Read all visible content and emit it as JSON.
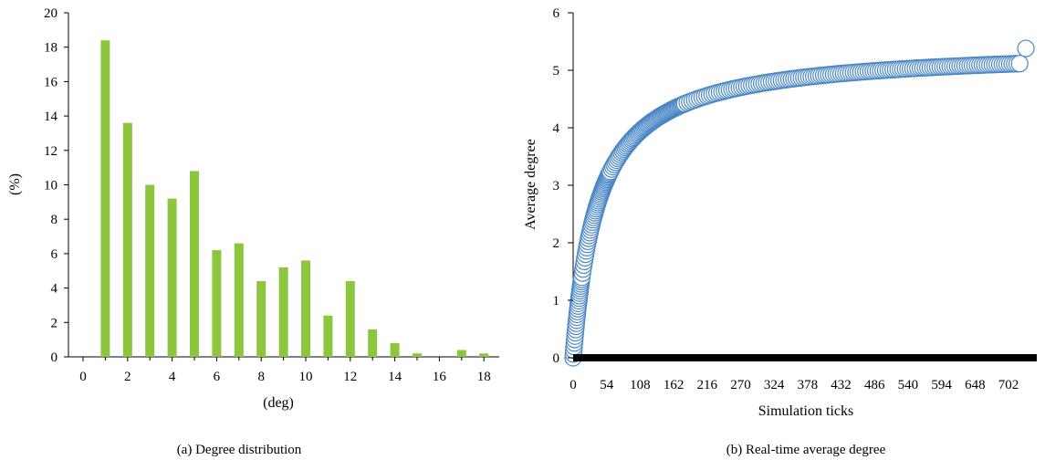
{
  "figure": {
    "caption_a": "(a)  Degree distribution",
    "caption_b": "(b)  Real-time average degree"
  },
  "chart_data": [
    {
      "type": "bar",
      "title": "",
      "xlabel": "(deg)",
      "ylabel": "(%)",
      "xlim": [
        -1,
        18.5
      ],
      "ylim": [
        0,
        20
      ],
      "xticks": [
        0,
        2,
        4,
        6,
        8,
        10,
        12,
        14,
        16,
        18
      ],
      "yticks": [
        0,
        2,
        4,
        6,
        8,
        10,
        12,
        14,
        16,
        18,
        20
      ],
      "x": [
        1,
        2,
        3,
        4,
        5,
        6,
        7,
        8,
        9,
        10,
        11,
        12,
        13,
        14,
        15,
        16,
        17,
        18
      ],
      "values": [
        18.4,
        13.6,
        10.0,
        9.2,
        10.8,
        6.2,
        6.6,
        4.4,
        5.2,
        5.6,
        2.4,
        4.4,
        1.6,
        0.8,
        0.2,
        0,
        0.4,
        0.2
      ],
      "bar_color": "#8cc63f",
      "grid": false
    },
    {
      "type": "scatter",
      "title": "",
      "xlabel": "Simulation ticks",
      "ylabel": "Average degree",
      "xlim": [
        0,
        730
      ],
      "ylim": [
        0,
        6
      ],
      "xticks": [
        0,
        54,
        108,
        162,
        216,
        270,
        324,
        378,
        432,
        486,
        540,
        594,
        648,
        702
      ],
      "yticks": [
        0,
        1,
        2,
        3,
        4,
        5,
        6
      ],
      "curve": {
        "y0": 0,
        "ymax": 5.4,
        "knee_ticks": 40
      },
      "x_end": 730,
      "y_end": 5.38,
      "marker_color": "#4a86c5",
      "marker_fill": "#ffffff",
      "baseline_color": "#000000",
      "grid": false
    }
  ]
}
